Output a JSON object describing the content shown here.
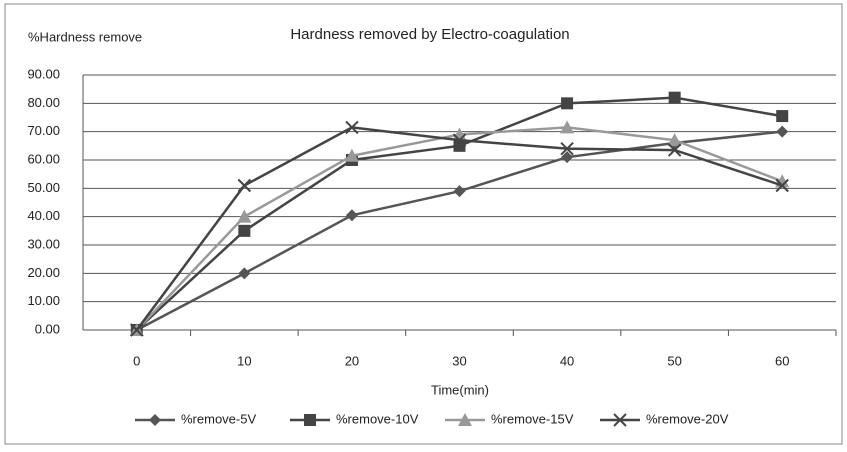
{
  "chart_data": {
    "type": "line",
    "title": "Hardness removed by Electro-coagulation",
    "y_label": "%Hardness remove",
    "x_label": "Time(min)",
    "categories": [
      "0",
      "10",
      "20",
      "30",
      "40",
      "50",
      "60"
    ],
    "series": [
      {
        "name": "%remove-5V",
        "color": "#555555",
        "marker": "diamond",
        "values": [
          0,
          20,
          40.5,
          49,
          61,
          66,
          70
        ]
      },
      {
        "name": "%remove-10V",
        "color": "#444444",
        "marker": "square",
        "values": [
          0,
          35,
          60,
          65,
          80,
          82,
          75.5
        ]
      },
      {
        "name": "%remove-15V",
        "color": "#999999",
        "marker": "triangle",
        "values": [
          0,
          40,
          61.5,
          69,
          71.5,
          67,
          52.5
        ]
      },
      {
        "name": "%remove-20V",
        "color": "#444444",
        "marker": "x",
        "values": [
          0,
          51,
          71.5,
          67,
          64,
          63.5,
          51
        ]
      }
    ],
    "ylim": [
      0,
      90
    ],
    "yticks": [
      {
        "value": 0,
        "label": "0.00"
      },
      {
        "value": 10,
        "label": "10.00"
      },
      {
        "value": 20,
        "label": "20.00"
      },
      {
        "value": 30,
        "label": "30.00"
      },
      {
        "value": 40,
        "label": "40.00"
      },
      {
        "value": 50,
        "label": "50.00"
      },
      {
        "value": 60,
        "label": "60.00"
      },
      {
        "value": 70,
        "label": "70.00"
      },
      {
        "value": 80,
        "label": "80.00"
      },
      {
        "value": 90,
        "label": "90.00"
      }
    ],
    "grid": true,
    "legend": "bottom"
  }
}
